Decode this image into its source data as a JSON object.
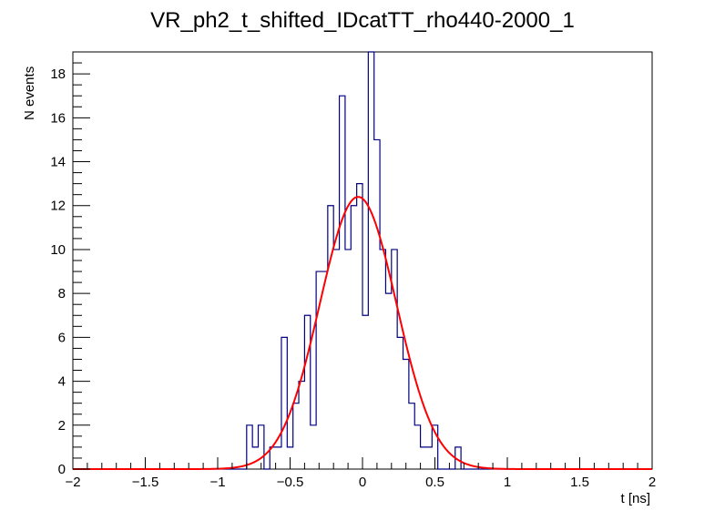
{
  "chart_data": {
    "type": "histogram",
    "title": "VR_ph2_t_shifted_IDcatTT_rho440-2000_1",
    "xlabel": "t [ns]",
    "ylabel": "N events",
    "xlim": [
      -2,
      2
    ],
    "ylim": [
      0,
      19
    ],
    "x_ticks": [
      -2,
      -1.5,
      -1,
      -0.5,
      0,
      0.5,
      1,
      1.5,
      2
    ],
    "x_tick_labels": [
      "−2",
      "−1.5",
      "−1",
      "−0.5",
      "0",
      "0.5",
      "1",
      "1.5",
      "2"
    ],
    "y_ticks": [
      0,
      2,
      4,
      6,
      8,
      10,
      12,
      14,
      16,
      18
    ],
    "y_tick_labels": [
      "0",
      "2",
      "4",
      "6",
      "8",
      "10",
      "12",
      "14",
      "16",
      "18"
    ],
    "series": [
      {
        "name": "histogram",
        "color": "#000080",
        "bin_width": 0.04,
        "bin_edges_start": -2,
        "counts": [
          0,
          0,
          0,
          0,
          0,
          0,
          0,
          0,
          0,
          0,
          0,
          0,
          0,
          0,
          0,
          0,
          0,
          0,
          0,
          0,
          0,
          0,
          0,
          0,
          0,
          0,
          0,
          0,
          0,
          0,
          2,
          1,
          2,
          0,
          1,
          1,
          6,
          1,
          3,
          4,
          7,
          2,
          9,
          9,
          12,
          10,
          17,
          10,
          12,
          13,
          7,
          19,
          15,
          10,
          8,
          10,
          6,
          5,
          3,
          2,
          1,
          1,
          2,
          0,
          0,
          0,
          1,
          0,
          0,
          0,
          0,
          0,
          0,
          0,
          0,
          0,
          0,
          0,
          0,
          0,
          0,
          0,
          0,
          0,
          0,
          0,
          0,
          0,
          0,
          0,
          0,
          0,
          0,
          0,
          0,
          0,
          0,
          0,
          0,
          0
        ]
      },
      {
        "name": "gaussian fit",
        "color": "#ff0000",
        "function": "gaussian",
        "amplitude": 12.4,
        "mean": -0.03,
        "sigma": 0.265
      }
    ]
  }
}
